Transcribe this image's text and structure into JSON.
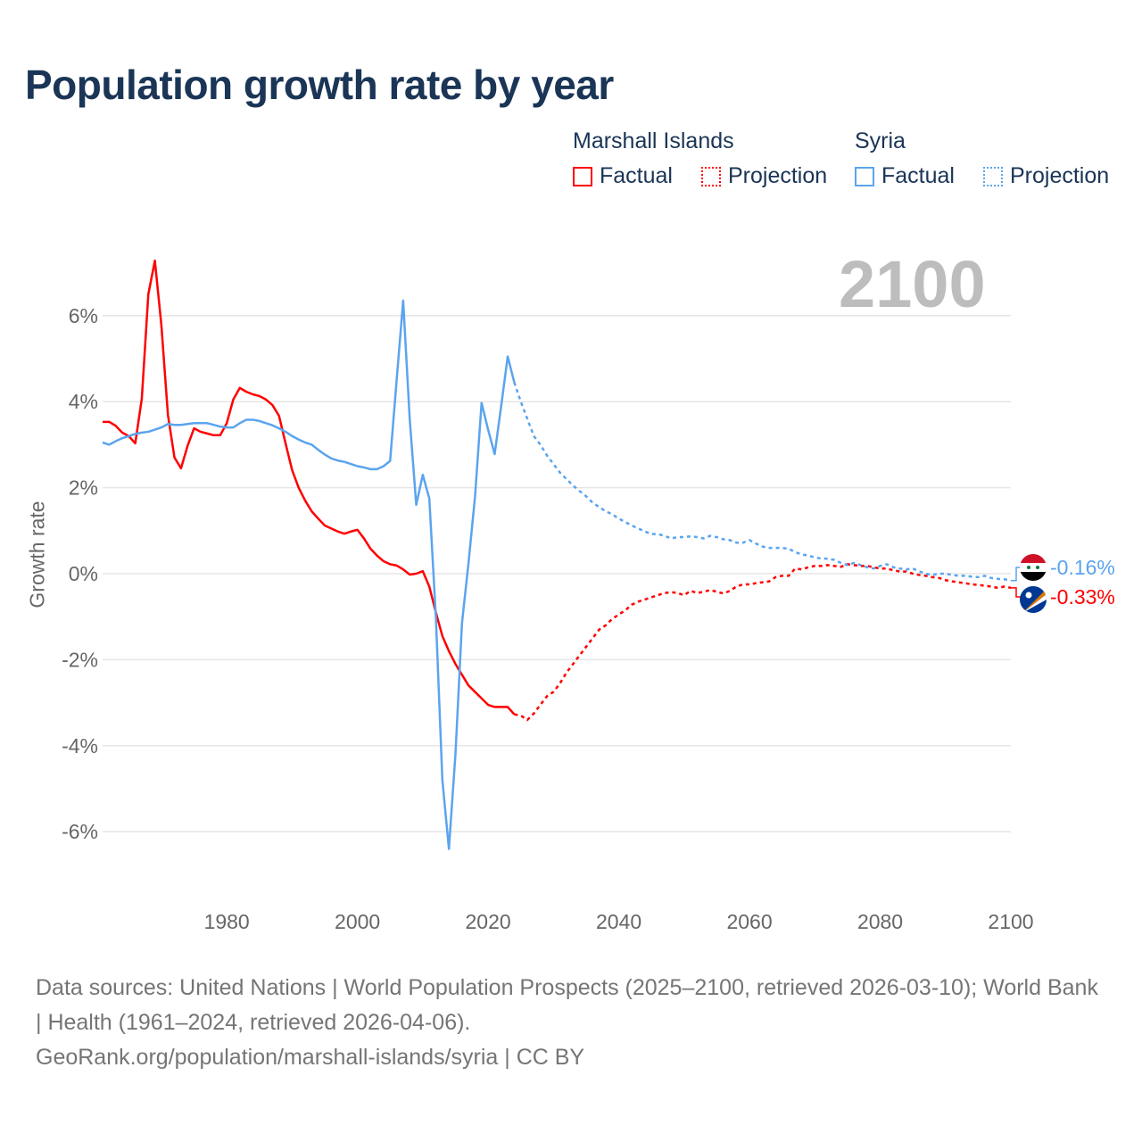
{
  "title": "Population growth rate by year",
  "year_display": "2100",
  "legend": {
    "groups": [
      {
        "name": "Marshall Islands",
        "factual": "Factual",
        "projection": "Projection",
        "color": "#ff0000"
      },
      {
        "name": "Syria",
        "factual": "Factual",
        "projection": "Projection",
        "color": "#5ba4ee"
      }
    ]
  },
  "chart_data": {
    "type": "line",
    "title": "Population growth rate by year",
    "xlabel": "",
    "ylabel": "Growth rate",
    "xlim": [
      1961,
      2100
    ],
    "ylim": [
      -7,
      7.5
    ],
    "x_ticks": [
      "1980",
      "2000",
      "2020",
      "2040",
      "2060",
      "2080",
      "2100"
    ],
    "x_tick_values": [
      1980,
      2000,
      2020,
      2040,
      2060,
      2080,
      2100
    ],
    "y_ticks": [
      "6%",
      "4%",
      "2%",
      "0%",
      "-2%",
      "-4%",
      "-6%"
    ],
    "y_tick_values": [
      6,
      4,
      2,
      0,
      -2,
      -4,
      -6
    ],
    "grid": true,
    "legend_position": "top-right",
    "series": [
      {
        "name": "Marshall Islands",
        "color": "#ff0000",
        "factual_start": 1961,
        "factual": [
          3.53,
          3.53,
          3.44,
          3.28,
          3.2,
          3.03,
          4.07,
          6.5,
          7.28,
          5.77,
          3.69,
          2.7,
          2.45,
          2.97,
          3.38,
          3.3,
          3.26,
          3.22,
          3.22,
          3.5,
          4.05,
          4.32,
          4.23,
          4.17,
          4.13,
          4.05,
          3.92,
          3.67,
          3.03,
          2.41,
          2.0,
          1.7,
          1.45,
          1.28,
          1.12,
          1.05,
          0.98,
          0.93,
          0.98,
          1.02,
          0.82,
          0.58,
          0.42,
          0.29,
          0.22,
          0.19,
          0.1,
          -0.02,
          0.0,
          0.06,
          -0.3,
          -0.9,
          -1.45,
          -1.8,
          -2.1,
          -2.35,
          -2.6,
          -2.75,
          -2.9,
          -3.05,
          -3.1,
          -3.1,
          -3.1,
          -3.27
        ],
        "projection_start": 2025,
        "projection": [
          -3.3,
          -3.4,
          -3.25,
          -3.05,
          -2.85,
          -2.75,
          -2.55,
          -2.3,
          -2.1,
          -1.9,
          -1.7,
          -1.5,
          -1.3,
          -1.2,
          -1.05,
          -0.95,
          -0.85,
          -0.72,
          -0.65,
          -0.6,
          -0.55,
          -0.5,
          -0.45,
          -0.43,
          -0.45,
          -0.5,
          -0.4,
          -0.45,
          -0.42,
          -0.38,
          -0.42,
          -0.46,
          -0.4,
          -0.3,
          -0.25,
          -0.25,
          -0.22,
          -0.2,
          -0.18,
          -0.08,
          -0.05,
          -0.05,
          0.12,
          0.1,
          0.15,
          0.18,
          0.18,
          0.2,
          0.18,
          0.16,
          0.22,
          0.2,
          0.18,
          0.18,
          0.15,
          0.12,
          0.12,
          0.08,
          0.05,
          0.05,
          0.0,
          -0.03,
          -0.05,
          -0.08,
          -0.1,
          -0.15,
          -0.18,
          -0.2,
          -0.22,
          -0.25,
          -0.26,
          -0.28,
          -0.3,
          -0.33,
          -0.3,
          -0.33
        ],
        "end_label": "-0.33%"
      },
      {
        "name": "Syria",
        "color": "#5ba4ee",
        "factual_start": 1961,
        "factual": [
          3.05,
          3.0,
          3.08,
          3.15,
          3.2,
          3.25,
          3.28,
          3.3,
          3.35,
          3.4,
          3.48,
          3.46,
          3.46,
          3.48,
          3.5,
          3.5,
          3.5,
          3.46,
          3.42,
          3.4,
          3.4,
          3.5,
          3.58,
          3.58,
          3.55,
          3.5,
          3.45,
          3.38,
          3.3,
          3.2,
          3.12,
          3.05,
          3.0,
          2.88,
          2.77,
          2.68,
          2.63,
          2.6,
          2.55,
          2.5,
          2.47,
          2.43,
          2.43,
          2.5,
          2.62,
          4.5,
          6.35,
          3.6,
          1.6,
          2.3,
          1.75,
          -1.0,
          -4.8,
          -6.4,
          -4.2,
          -1.15,
          0.25,
          1.8,
          3.97,
          3.35,
          2.78,
          3.9,
          5.05,
          4.45
        ],
        "projection_start": 2025,
        "projection": [
          4.0,
          3.6,
          3.2,
          3.0,
          2.75,
          2.55,
          2.35,
          2.2,
          2.05,
          1.92,
          1.8,
          1.65,
          1.55,
          1.45,
          1.38,
          1.28,
          1.2,
          1.12,
          1.05,
          0.98,
          0.92,
          0.92,
          0.88,
          0.82,
          0.85,
          0.85,
          0.87,
          0.85,
          0.82,
          0.88,
          0.85,
          0.8,
          0.78,
          0.72,
          0.72,
          0.78,
          0.7,
          0.63,
          0.6,
          0.6,
          0.6,
          0.58,
          0.5,
          0.45,
          0.42,
          0.38,
          0.35,
          0.35,
          0.32,
          0.25,
          0.2,
          0.25,
          0.2,
          0.15,
          0.12,
          0.18,
          0.22,
          0.15,
          0.12,
          0.1,
          0.12,
          0.05,
          0.0,
          -0.03,
          0.0,
          0.0,
          -0.03,
          -0.05,
          -0.05,
          -0.07,
          -0.08,
          -0.05,
          -0.1,
          -0.12,
          -0.13,
          -0.16
        ],
        "end_label": "-0.16%"
      }
    ]
  },
  "footer": {
    "line1": "Data sources: United Nations | World Population Prospects (2025–2100, retrieved 2026-03-10); World Bank | Health (1961–2024, retrieved 2026-04-06).",
    "line2": "GeoRank.org/population/marshall-islands/syria | CC BY"
  }
}
